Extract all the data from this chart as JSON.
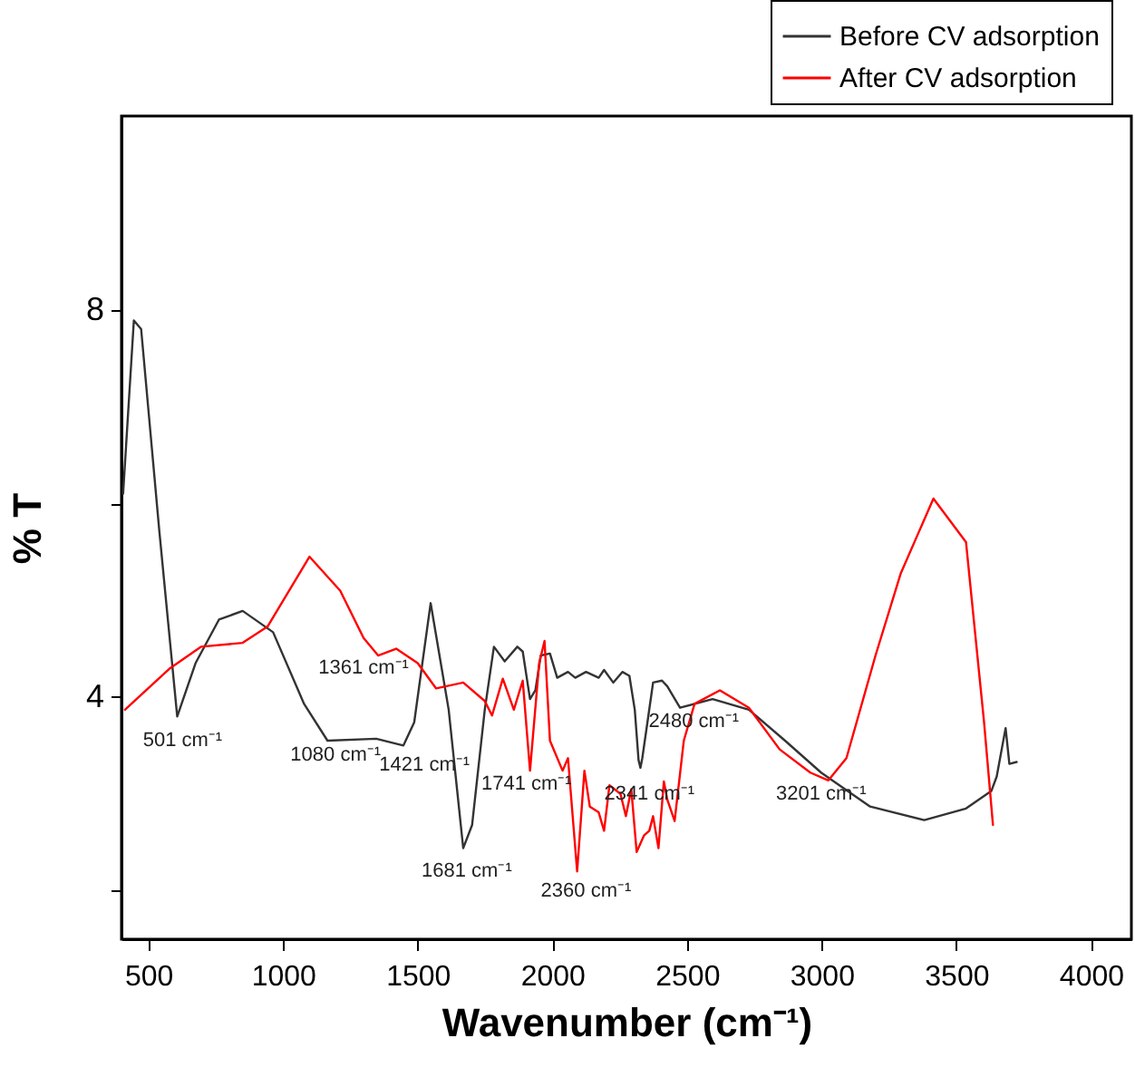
{
  "chart_data": {
    "type": "line",
    "xlabel": "Wavenumber (cm⁻¹)",
    "ylabel": "% T",
    "xlim": [
      400,
      4150
    ],
    "ylim": [
      1.5,
      10
    ],
    "xticks": [
      500,
      1000,
      1500,
      2000,
      2500,
      3000,
      3500,
      4000
    ],
    "yticks": [
      {
        "value": 2,
        "label": null
      },
      4,
      {
        "value": 6,
        "label": null
      },
      8
    ],
    "grid": false,
    "legend": "top right",
    "series": [
      {
        "name": "Before CV adsorption",
        "color": "#333333",
        "x": [
          406,
          446,
          473,
          540,
          607,
          675,
          762,
          850,
          963,
          1078,
          1165,
          1346,
          1447,
          1487,
          1548,
          1615,
          1669,
          1702,
          1749,
          1783,
          1823,
          1870,
          1890,
          1917,
          1937,
          1957,
          1991,
          2018,
          2058,
          2085,
          2125,
          2172,
          2192,
          2226,
          2260,
          2286,
          2306,
          2320,
          2327,
          2334,
          2353,
          2374,
          2407,
          2427,
          2474,
          2595,
          2730,
          2864,
          2998,
          3180,
          3381,
          3536,
          3630,
          3650,
          3683,
          3697,
          3724
        ],
        "values": [
          6.1,
          7.89,
          7.8,
          5.73,
          3.8,
          4.35,
          4.8,
          4.89,
          4.67,
          3.93,
          3.55,
          3.57,
          3.5,
          3.74,
          4.97,
          3.87,
          2.44,
          2.68,
          3.87,
          4.52,
          4.37,
          4.52,
          4.47,
          3.98,
          4.07,
          4.43,
          4.45,
          4.2,
          4.26,
          4.2,
          4.26,
          4.2,
          4.28,
          4.15,
          4.26,
          4.22,
          3.87,
          3.35,
          3.27,
          3.37,
          3.74,
          4.15,
          4.17,
          4.11,
          3.89,
          3.98,
          3.87,
          3.55,
          3.22,
          2.87,
          2.73,
          2.85,
          3.03,
          3.18,
          3.68,
          3.31,
          3.33
        ]
      },
      {
        "name": "After CV adsorption",
        "color": "#ff0000",
        "x": [
          413,
          581,
          695,
          850,
          943,
          1098,
          1212,
          1299,
          1353,
          1420,
          1500,
          1568,
          1669,
          1749,
          1776,
          1816,
          1857,
          1890,
          1917,
          1951,
          1971,
          1991,
          2038,
          2058,
          2092,
          2119,
          2139,
          2172,
          2192,
          2212,
          2253,
          2273,
          2293,
          2313,
          2340,
          2360,
          2374,
          2394,
          2414,
          2427,
          2454,
          2488,
          2528,
          2622,
          2730,
          2844,
          2958,
          3025,
          3092,
          3200,
          3294,
          3415,
          3536,
          3603,
          3636
        ],
        "values": [
          3.87,
          4.3,
          4.52,
          4.56,
          4.73,
          5.45,
          5.1,
          4.61,
          4.43,
          4.5,
          4.35,
          4.09,
          4.15,
          3.96,
          3.81,
          4.19,
          3.87,
          4.17,
          3.24,
          4.35,
          4.58,
          3.55,
          3.24,
          3.37,
          2.2,
          3.24,
          2.87,
          2.81,
          2.62,
          3.09,
          3.0,
          2.77,
          3.05,
          2.4,
          2.57,
          2.62,
          2.77,
          2.44,
          3.13,
          2.94,
          2.72,
          3.55,
          3.93,
          4.07,
          3.89,
          3.46,
          3.22,
          3.14,
          3.37,
          4.43,
          5.28,
          6.05,
          5.6,
          3.74,
          2.68
        ]
      }
    ],
    "annotations": [
      "501 cm⁻¹",
      "1080 cm⁻¹",
      "1361 cm⁻¹",
      "1421 cm⁻¹",
      "1681 cm⁻¹",
      "1741 cm⁻¹",
      "2360 cm⁻¹",
      "2341 cm⁻¹",
      "2480 cm⁻¹",
      "3201 cm⁻¹"
    ]
  }
}
